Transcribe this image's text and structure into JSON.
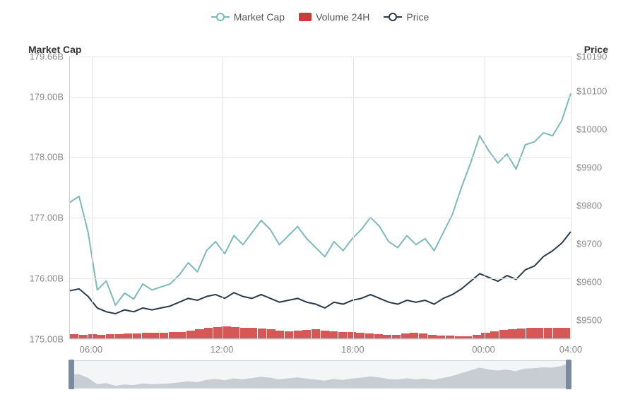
{
  "legend": {
    "items": [
      {
        "key": "marketcap",
        "label": "Market Cap",
        "type": "line",
        "color": "#7db9b6"
      },
      {
        "key": "volume",
        "label": "Volume 24H",
        "type": "bar",
        "color": "#cc3b3b"
      },
      {
        "key": "price",
        "label": "Price",
        "type": "line",
        "color": "#2d3a4a"
      }
    ]
  },
  "chart": {
    "background_color": "#ffffff",
    "grid_color": "#e5e5e5",
    "axis_line_color": "#cccccc",
    "tick_font_color": "#888888",
    "tick_font_size": 13,
    "title_font_size": 14,
    "title_font_weight": 700,
    "left_axis": {
      "title": "Market Cap",
      "min": 175.0,
      "max": 179.66,
      "ticks": [
        {
          "v": 179.66,
          "label": "179.66B"
        },
        {
          "v": 179.0,
          "label": "179.00B"
        },
        {
          "v": 178.0,
          "label": "178.00B"
        },
        {
          "v": 177.0,
          "label": "177.00B"
        },
        {
          "v": 176.0,
          "label": "176.00B"
        },
        {
          "v": 175.0,
          "label": "175.00B"
        }
      ]
    },
    "right_axis": {
      "title": "Price",
      "min": 9450,
      "max": 10190,
      "prefix": "$",
      "ticks": [
        {
          "v": 10190,
          "label": "$10190"
        },
        {
          "v": 10100,
          "label": "$10100"
        },
        {
          "v": 10000,
          "label": "$10000"
        },
        {
          "v": 9900,
          "label": "$9900"
        },
        {
          "v": 9800,
          "label": "$9800"
        },
        {
          "v": 9700,
          "label": "$9700"
        },
        {
          "v": 9600,
          "label": "$9600"
        },
        {
          "v": 9500,
          "label": "$9500"
        }
      ]
    },
    "x_axis": {
      "min": 0,
      "max": 23,
      "ticks": [
        {
          "v": 1,
          "label": "06:00"
        },
        {
          "v": 7,
          "label": "12:00"
        },
        {
          "v": 13,
          "label": "18:00"
        },
        {
          "v": 19,
          "label": "00:00"
        },
        {
          "v": 23,
          "label": "04:00"
        }
      ]
    },
    "series_marketcap": {
      "color": "#7db9b6",
      "line_width": 2,
      "data": [
        177.25,
        177.35,
        176.75,
        175.8,
        175.95,
        175.55,
        175.75,
        175.65,
        175.9,
        175.8,
        175.85,
        175.9,
        176.05,
        176.25,
        176.1,
        176.45,
        176.6,
        176.4,
        176.7,
        176.55,
        176.75,
        176.95,
        176.8,
        176.55,
        176.7,
        176.85,
        176.65,
        176.5,
        176.35,
        176.6,
        176.45,
        176.65,
        176.8,
        177.0,
        176.85,
        176.6,
        176.5,
        176.7,
        176.55,
        176.65,
        176.45,
        176.75,
        177.05,
        177.5,
        177.9,
        178.35,
        178.1,
        177.9,
        178.05,
        177.8,
        178.2,
        178.25,
        178.4,
        178.35,
        178.6,
        179.05
      ]
    },
    "series_price": {
      "color": "#2d3a4a",
      "line_width": 2,
      "data": [
        9575,
        9580,
        9560,
        9530,
        9520,
        9515,
        9525,
        9520,
        9530,
        9525,
        9530,
        9535,
        9545,
        9555,
        9550,
        9560,
        9565,
        9555,
        9570,
        9560,
        9555,
        9565,
        9555,
        9545,
        9550,
        9555,
        9545,
        9540,
        9530,
        9545,
        9540,
        9550,
        9555,
        9565,
        9555,
        9545,
        9540,
        9550,
        9545,
        9550,
        9540,
        9555,
        9565,
        9580,
        9600,
        9620,
        9610,
        9600,
        9615,
        9605,
        9630,
        9640,
        9665,
        9680,
        9700,
        9730
      ]
    },
    "series_volume": {
      "color": "#cc3b3b",
      "bar_opacity": 0.85,
      "baseline": 175.0,
      "data": [
        175.07,
        175.06,
        175.07,
        175.06,
        175.07,
        175.07,
        175.08,
        175.08,
        175.09,
        175.09,
        175.09,
        175.1,
        175.11,
        175.13,
        175.15,
        175.18,
        175.19,
        175.2,
        175.19,
        175.18,
        175.17,
        175.16,
        175.15,
        175.13,
        175.12,
        175.13,
        175.14,
        175.15,
        175.13,
        175.12,
        175.11,
        175.1,
        175.09,
        175.08,
        175.07,
        175.06,
        175.06,
        175.08,
        175.09,
        175.08,
        175.06,
        175.05,
        175.05,
        175.04,
        175.04,
        175.06,
        175.09,
        175.12,
        175.14,
        175.15,
        175.16,
        175.17,
        175.17,
        175.17,
        175.17,
        175.18
      ]
    }
  },
  "brush": {
    "background": "#f4f5f7",
    "border_color": "#d0d4da",
    "handle_color": "#7a8aa0",
    "area_color": "#c8ccd3",
    "selection_start": 0,
    "selection_end": 1
  }
}
